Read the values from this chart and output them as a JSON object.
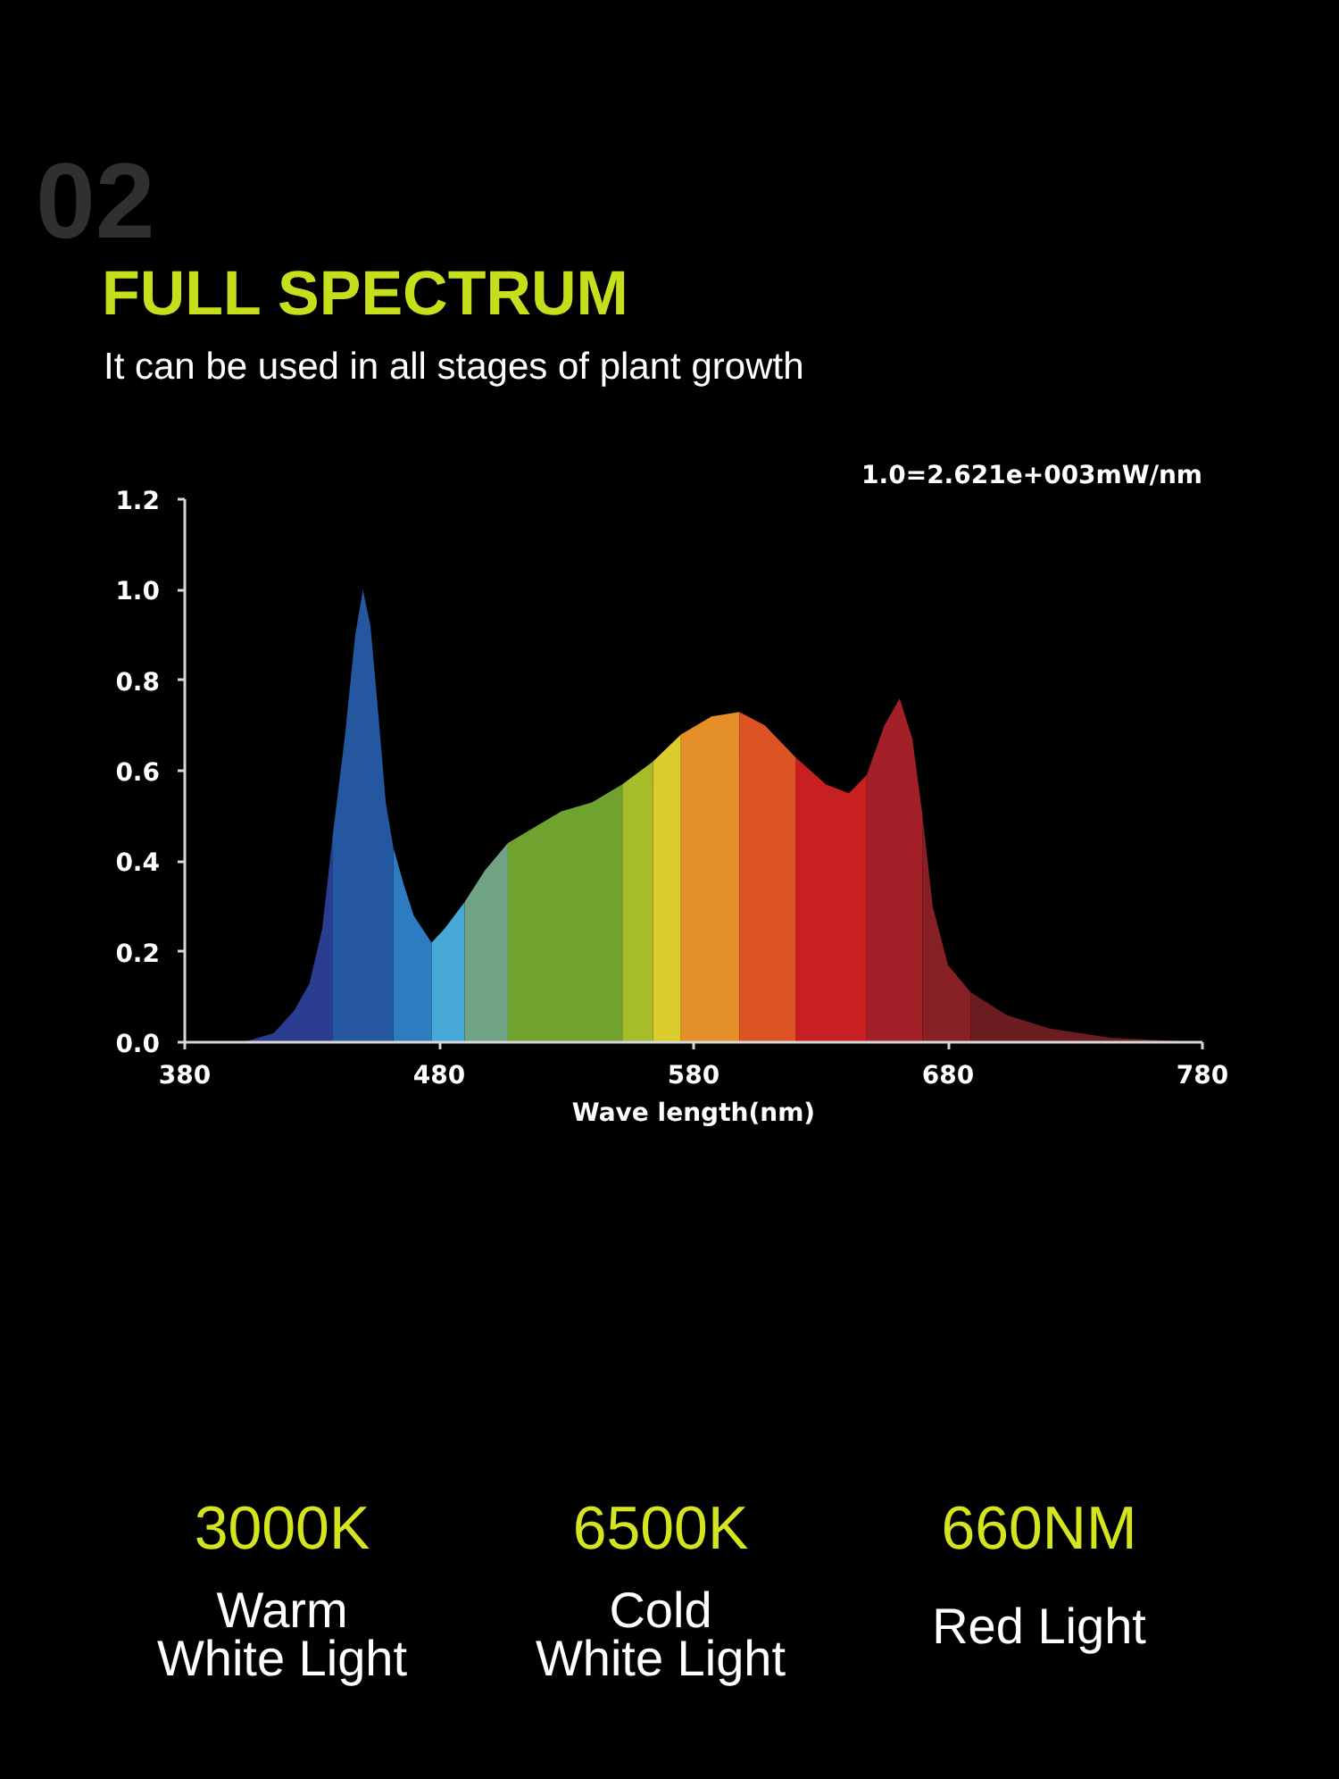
{
  "chart_data": {
    "type": "area",
    "title": "FULL SPECTRUM",
    "subtitle": "It can be used in all stages of plant growth",
    "xlabel": "Wave length(nm)",
    "annotations": [
      "02",
      "1.0=2.621e+003mW/nm",
      "3000K",
      "Warm\nWhite Light",
      "6500K",
      "Cold\nWhite Light",
      "660NM",
      "Red Light"
    ],
    "xlim": [
      380,
      780
    ],
    "xticks": [
      380,
      480,
      580,
      680,
      780
    ],
    "ylim": [
      0,
      1.2
    ],
    "yticks": [
      {
        "value": 0,
        "label": "0.0"
      },
      0.2,
      0.4,
      0.6,
      0.8,
      {
        "value": 1,
        "label": "1.0"
      },
      1.2
    ],
    "series": [
      {
        "color": "#2b3d90",
        "x": [
          403,
          415,
          423,
          429,
          434,
          438
        ],
        "values": [
          0.0,
          0.02,
          0.07,
          0.13,
          0.25,
          0.45
        ]
      },
      {
        "color": "#2457a0",
        "x": [
          438,
          443,
          447,
          450,
          453,
          456,
          459,
          462
        ],
        "values": [
          0.45,
          0.68,
          0.9,
          1.0,
          0.92,
          0.73,
          0.53,
          0.43
        ]
      },
      {
        "color": "#2d7cc2",
        "x": [
          462,
          466,
          470,
          477
        ],
        "values": [
          0.43,
          0.35,
          0.28,
          0.22
        ]
      },
      {
        "color": "#46a8d6",
        "x": [
          477,
          482,
          490
        ],
        "values": [
          0.22,
          0.25,
          0.31
        ]
      },
      {
        "color": "#6fa384",
        "x": [
          490,
          498,
          507
        ],
        "values": [
          0.31,
          0.38,
          0.44
        ]
      },
      {
        "color": "#6fa22e",
        "x": [
          507,
          516,
          528,
          540,
          552
        ],
        "values": [
          0.44,
          0.47,
          0.51,
          0.53,
          0.57
        ]
      },
      {
        "color": "#a6bc2a",
        "x": [
          552,
          564
        ],
        "values": [
          0.57,
          0.62
        ]
      },
      {
        "color": "#dccb2c",
        "x": [
          564,
          575
        ],
        "values": [
          0.62,
          0.68
        ]
      },
      {
        "color": "#e48e28",
        "x": [
          575,
          587,
          598
        ],
        "values": [
          0.68,
          0.72,
          0.73
        ]
      },
      {
        "color": "#dc5424",
        "x": [
          598,
          608,
          620
        ],
        "values": [
          0.73,
          0.7,
          0.63
        ]
      },
      {
        "color": "#c82020",
        "x": [
          620,
          632,
          641,
          648
        ],
        "values": [
          0.63,
          0.57,
          0.55,
          0.59
        ]
      },
      {
        "color": "#a42028",
        "x": [
          648,
          655,
          661,
          666,
          670
        ],
        "values": [
          0.59,
          0.7,
          0.76,
          0.67,
          0.5
        ]
      },
      {
        "color": "#862024",
        "x": [
          670,
          674,
          680,
          689
        ],
        "values": [
          0.5,
          0.3,
          0.17,
          0.11
        ]
      },
      {
        "color": "#6a1c20",
        "x": [
          689,
          703,
          720,
          744,
          778
        ],
        "values": [
          0.11,
          0.06,
          0.03,
          0.01,
          0.0
        ]
      }
    ]
  }
}
